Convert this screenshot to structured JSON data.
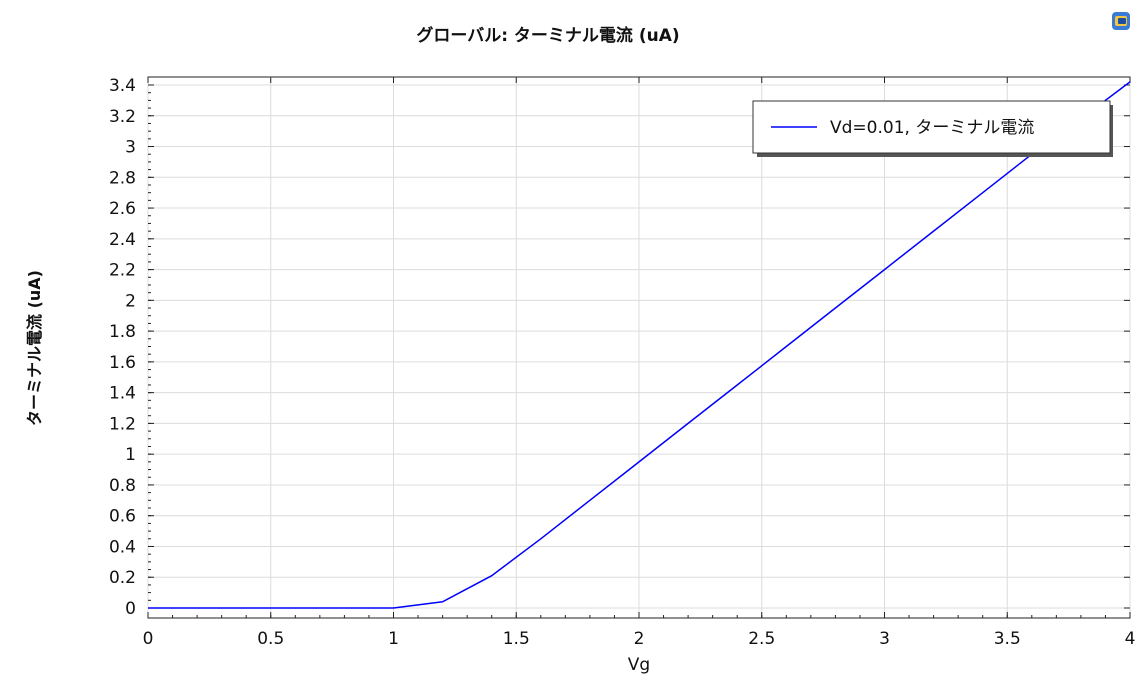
{
  "chart_data": {
    "type": "line",
    "title": "グローバル: ターミナル電流 (uA)",
    "xlabel": "Vg",
    "ylabel": "ターミナル電流 (uA)",
    "xlim": [
      0,
      4
    ],
    "ylim": [
      0,
      3.4
    ],
    "x_ticks": [
      "0",
      "0.5",
      "1",
      "1.5",
      "2",
      "2.5",
      "3",
      "3.5",
      "4"
    ],
    "y_ticks": [
      "0",
      "0.2",
      "0.4",
      "0.6",
      "0.8",
      "1",
      "1.2",
      "1.4",
      "1.6",
      "1.8",
      "2",
      "2.2",
      "2.4",
      "2.6",
      "2.8",
      "3",
      "3.2",
      "3.4"
    ],
    "grid": true,
    "legend_position": "top-right",
    "series": [
      {
        "name": "Vd=0.01, ターミナル電流",
        "color": "#0000ff",
        "x": [
          0,
          0.2,
          0.4,
          0.6,
          0.8,
          1.0,
          1.2,
          1.4,
          1.6,
          1.8,
          2.0,
          2.2,
          2.4,
          2.6,
          2.8,
          3.0,
          3.2,
          3.4,
          3.6,
          3.8,
          4.0
        ],
        "y": [
          0,
          0,
          0,
          0,
          0,
          0,
          0.04,
          0.21,
          0.45,
          0.7,
          0.95,
          1.2,
          1.45,
          1.7,
          1.95,
          2.2,
          2.45,
          2.7,
          2.95,
          3.18,
          3.42
        ]
      }
    ]
  },
  "toolbar": {
    "icon": "plot-window-icon"
  }
}
